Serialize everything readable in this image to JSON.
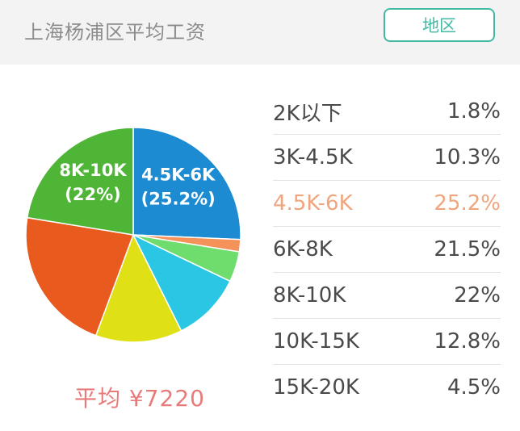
{
  "header": {
    "title": "上海杨浦区平均工资",
    "region_button": "地区"
  },
  "average": {
    "label": "平均 ¥7220"
  },
  "colors": {
    "accent": "#42b8a3",
    "highlight_text": "#f0a57d",
    "average_text": "#e97a7a"
  },
  "table": {
    "rows": [
      {
        "range": "2K以下",
        "percent": "1.8%"
      },
      {
        "range": "3K-4.5K",
        "percent": "10.3%"
      },
      {
        "range": "4.5K-6K",
        "percent": "25.2%",
        "highlighted": true
      },
      {
        "range": "6K-8K",
        "percent": "21.5%"
      },
      {
        "range": "8K-10K",
        "percent": "22%"
      },
      {
        "range": "10K-15K",
        "percent": "12.8%"
      },
      {
        "range": "15K-20K",
        "percent": "4.5%"
      }
    ]
  },
  "chart_data": {
    "type": "pie",
    "slices": [
      {
        "label": "4.5K-6K",
        "value": 25.2,
        "color": "#1d8bd1",
        "callout_label": "4.5K-6K",
        "callout_value": "(25.2%)"
      },
      {
        "label": "2K以下",
        "value": 1.8,
        "color": "#f5925a"
      },
      {
        "label": "15K-20K",
        "value": 4.5,
        "color": "#6fdc6e"
      },
      {
        "label": "3K-4.5K",
        "value": 10.3,
        "color": "#2bc6e4"
      },
      {
        "label": "10K-15K",
        "value": 12.8,
        "color": "#e0e016"
      },
      {
        "label": "6K-8K",
        "value": 21.5,
        "color": "#e85a1d"
      },
      {
        "label": "8K-10K",
        "value": 22,
        "color": "#4fb536",
        "callout_label": "8K-10K",
        "callout_value": "(22%)"
      }
    ]
  }
}
